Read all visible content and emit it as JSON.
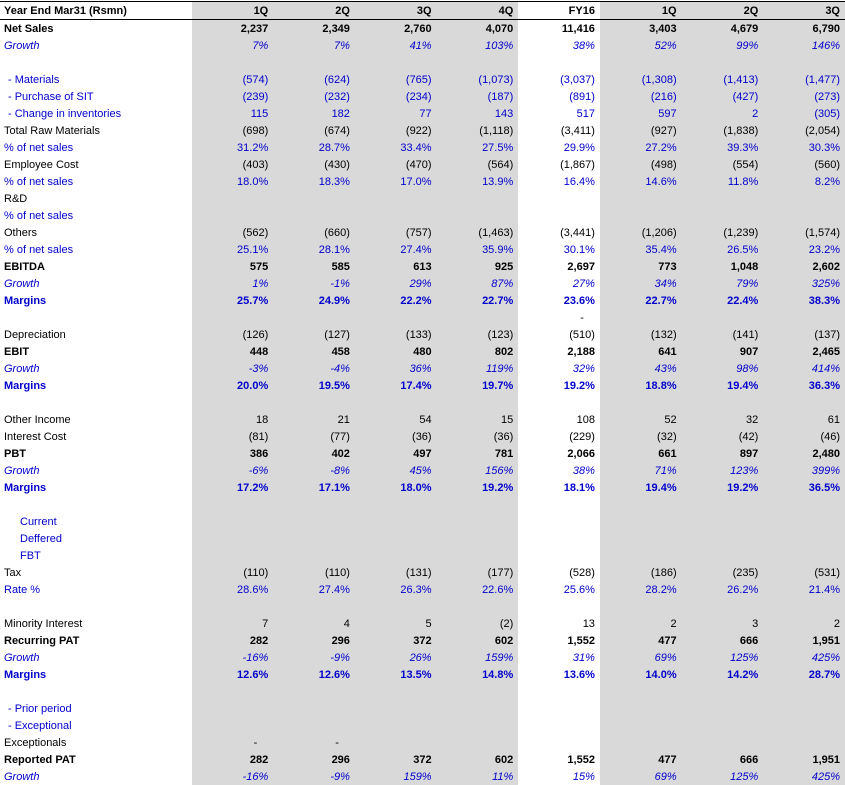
{
  "table": {
    "header": {
      "label": "Year End Mar31 (Rsmn)",
      "columns": [
        "1Q",
        "2Q",
        "3Q",
        "4Q",
        "FY16",
        "1Q",
        "2Q",
        "3Q"
      ]
    },
    "colors": {
      "shaded_column_fill": "#d9d9d9",
      "accent_blue": "#0000cc",
      "text_black": "#000000",
      "background": "#ffffff"
    },
    "plain_column_index": 4,
    "rows": [
      {
        "label": "Net Sales",
        "style": "bold",
        "indent": 0,
        "values": [
          "2,237",
          "2,349",
          "2,760",
          "4,070",
          "11,416",
          "3,403",
          "4,679",
          "6,790"
        ]
      },
      {
        "label": "Growth",
        "style": "growth",
        "indent": 0,
        "values": [
          "7%",
          "7%",
          "41%",
          "103%",
          "38%",
          "52%",
          "99%",
          "146%"
        ]
      },
      {
        "label": "",
        "style": "plain",
        "indent": 0,
        "values": [
          "",
          "",
          "",
          "",
          "",
          "",
          "",
          ""
        ]
      },
      {
        "label": "- Materials",
        "style": "blue",
        "indent": 1,
        "values": [
          "(574)",
          "(624)",
          "(765)",
          "(1,073)",
          "(3,037)",
          "(1,308)",
          "(1,413)",
          "(1,477)"
        ]
      },
      {
        "label": "- Purchase of SIT",
        "style": "blue",
        "indent": 1,
        "values": [
          "(239)",
          "(232)",
          "(234)",
          "(187)",
          "(891)",
          "(216)",
          "(427)",
          "(273)"
        ]
      },
      {
        "label": "- Change in inventories",
        "style": "blue",
        "indent": 1,
        "values": [
          "115",
          "182",
          "77",
          "143",
          "517",
          "597",
          "2",
          "(305)"
        ]
      },
      {
        "label": "Total Raw Materials",
        "style": "plain",
        "indent": 0,
        "values": [
          "(698)",
          "(674)",
          "(922)",
          "(1,118)",
          "(3,411)",
          "(927)",
          "(1,838)",
          "(2,054)"
        ]
      },
      {
        "label": "% of net sales",
        "style": "blue",
        "indent": 0,
        "values": [
          "31.2%",
          "28.7%",
          "33.4%",
          "27.5%",
          "29.9%",
          "27.2%",
          "39.3%",
          "30.3%"
        ]
      },
      {
        "label": "Employee Cost",
        "style": "plain",
        "indent": 0,
        "values": [
          "(403)",
          "(430)",
          "(470)",
          "(564)",
          "(1,867)",
          "(498)",
          "(554)",
          "(560)"
        ]
      },
      {
        "label": "% of net sales",
        "style": "blue",
        "indent": 0,
        "values": [
          "18.0%",
          "18.3%",
          "17.0%",
          "13.9%",
          "16.4%",
          "14.6%",
          "11.8%",
          "8.2%"
        ]
      },
      {
        "label": "R&D",
        "style": "plain",
        "indent": 0,
        "values": [
          "",
          "",
          "",
          "",
          "",
          "",
          "",
          ""
        ]
      },
      {
        "label": "% of net sales",
        "style": "blue",
        "indent": 0,
        "values": [
          "",
          "",
          "",
          "",
          "",
          "",
          "",
          ""
        ]
      },
      {
        "label": "Others",
        "style": "plain",
        "indent": 0,
        "values": [
          "(562)",
          "(660)",
          "(757)",
          "(1,463)",
          "(3,441)",
          "(1,206)",
          "(1,239)",
          "(1,574)"
        ]
      },
      {
        "label": "% of net sales",
        "style": "blue",
        "indent": 0,
        "values": [
          "25.1%",
          "28.1%",
          "27.4%",
          "35.9%",
          "30.1%",
          "35.4%",
          "26.5%",
          "23.2%"
        ]
      },
      {
        "label": "EBITDA",
        "style": "bold",
        "indent": 0,
        "values": [
          "575",
          "585",
          "613",
          "925",
          "2,697",
          "773",
          "1,048",
          "2,602"
        ]
      },
      {
        "label": "Growth",
        "style": "growth",
        "indent": 0,
        "values": [
          "1%",
          "-1%",
          "29%",
          "87%",
          "27%",
          "34%",
          "79%",
          "325%"
        ]
      },
      {
        "label": "Margins",
        "style": "margins",
        "indent": 0,
        "values": [
          "25.7%",
          "24.9%",
          "22.2%",
          "22.7%",
          "23.6%",
          "22.7%",
          "22.4%",
          "38.3%"
        ]
      },
      {
        "label": "",
        "style": "plain",
        "indent": 0,
        "values": [
          "",
          "",
          "",
          "",
          "-",
          "",
          "",
          ""
        ]
      },
      {
        "label": "Depreciation",
        "style": "plain",
        "indent": 0,
        "values": [
          "(126)",
          "(127)",
          "(133)",
          "(123)",
          "(510)",
          "(132)",
          "(141)",
          "(137)"
        ]
      },
      {
        "label": "EBIT",
        "style": "bold",
        "indent": 0,
        "values": [
          "448",
          "458",
          "480",
          "802",
          "2,188",
          "641",
          "907",
          "2,465"
        ]
      },
      {
        "label": "Growth",
        "style": "growth",
        "indent": 0,
        "values": [
          "-3%",
          "-4%",
          "36%",
          "119%",
          "32%",
          "43%",
          "98%",
          "414%"
        ]
      },
      {
        "label": "Margins",
        "style": "margins",
        "indent": 0,
        "values": [
          "20.0%",
          "19.5%",
          "17.4%",
          "19.7%",
          "19.2%",
          "18.8%",
          "19.4%",
          "36.3%"
        ]
      },
      {
        "label": "",
        "style": "plain",
        "indent": 0,
        "values": [
          "",
          "",
          "",
          "",
          "",
          "",
          "",
          ""
        ]
      },
      {
        "label": "Other Income",
        "style": "plain",
        "indent": 0,
        "values": [
          "18",
          "21",
          "54",
          "15",
          "108",
          "52",
          "32",
          "61"
        ]
      },
      {
        "label": "Interest Cost",
        "style": "plain",
        "indent": 0,
        "values": [
          "(81)",
          "(77)",
          "(36)",
          "(36)",
          "(229)",
          "(32)",
          "(42)",
          "(46)"
        ]
      },
      {
        "label": "PBT",
        "style": "bold",
        "indent": 0,
        "values": [
          "386",
          "402",
          "497",
          "781",
          "2,066",
          "661",
          "897",
          "2,480"
        ]
      },
      {
        "label": "Growth",
        "style": "growth",
        "indent": 0,
        "values": [
          "-6%",
          "-8%",
          "45%",
          "156%",
          "38%",
          "71%",
          "123%",
          "399%"
        ]
      },
      {
        "label": "Margins",
        "style": "margins",
        "indent": 0,
        "values": [
          "17.2%",
          "17.1%",
          "18.0%",
          "19.2%",
          "18.1%",
          "19.4%",
          "19.2%",
          "36.5%"
        ]
      },
      {
        "label": "",
        "style": "plain",
        "indent": 0,
        "values": [
          "",
          "",
          "",
          "",
          "",
          "",
          "",
          ""
        ]
      },
      {
        "label": "Current",
        "style": "blue",
        "indent": 2,
        "values": [
          "",
          "",
          "",
          "",
          "",
          "",
          "",
          ""
        ]
      },
      {
        "label": "Deffered",
        "style": "blue",
        "indent": 2,
        "values": [
          "",
          "",
          "",
          "",
          "",
          "",
          "",
          ""
        ]
      },
      {
        "label": "FBT",
        "style": "blue",
        "indent": 2,
        "values": [
          "",
          "",
          "",
          "",
          "",
          "",
          "",
          ""
        ]
      },
      {
        "label": "Tax",
        "style": "plain",
        "indent": 0,
        "values": [
          "(110)",
          "(110)",
          "(131)",
          "(177)",
          "(528)",
          "(186)",
          "(235)",
          "(531)"
        ]
      },
      {
        "label": "Rate %",
        "style": "blue",
        "indent": 0,
        "values": [
          "28.6%",
          "27.4%",
          "26.3%",
          "22.6%",
          "25.6%",
          "28.2%",
          "26.2%",
          "21.4%"
        ]
      },
      {
        "label": "",
        "style": "plain",
        "indent": 0,
        "values": [
          "",
          "",
          "",
          "",
          "",
          "",
          "",
          ""
        ]
      },
      {
        "label": "Minority Interest",
        "style": "plain",
        "indent": 0,
        "values": [
          "7",
          "4",
          "5",
          "(2)",
          "13",
          "2",
          "3",
          "2"
        ]
      },
      {
        "label": "Recurring PAT",
        "style": "bold",
        "indent": 0,
        "values": [
          "282",
          "296",
          "372",
          "602",
          "1,552",
          "477",
          "666",
          "1,951"
        ]
      },
      {
        "label": "Growth",
        "style": "growth",
        "indent": 0,
        "values": [
          "-16%",
          "-9%",
          "26%",
          "159%",
          "31%",
          "69%",
          "125%",
          "425%"
        ]
      },
      {
        "label": "Margins",
        "style": "margins",
        "indent": 0,
        "values": [
          "12.6%",
          "12.6%",
          "13.5%",
          "14.8%",
          "13.6%",
          "14.0%",
          "14.2%",
          "28.7%"
        ]
      },
      {
        "label": "",
        "style": "plain",
        "indent": 0,
        "values": [
          "",
          "",
          "",
          "",
          "",
          "",
          "",
          ""
        ]
      },
      {
        "label": "- Prior period",
        "style": "blue",
        "indent": 1,
        "values": [
          "",
          "",
          "",
          "",
          "",
          "",
          "",
          ""
        ]
      },
      {
        "label": "- Exceptional",
        "style": "blue",
        "indent": 1,
        "values": [
          "",
          "",
          "",
          "",
          "",
          "",
          "",
          ""
        ]
      },
      {
        "label": "Exceptionals",
        "style": "plain",
        "indent": 0,
        "values": [
          "-",
          "-",
          "",
          "",
          "",
          "",
          "",
          ""
        ]
      },
      {
        "label": "Reported PAT",
        "style": "bold",
        "indent": 0,
        "values": [
          "282",
          "296",
          "372",
          "602",
          "1,552",
          "477",
          "666",
          "1,951"
        ]
      },
      {
        "label": "Growth",
        "style": "growth",
        "indent": 0,
        "values": [
          "-16%",
          "-9%",
          "159%",
          "11%",
          "15%",
          "69%",
          "125%",
          "425%"
        ]
      }
    ]
  }
}
